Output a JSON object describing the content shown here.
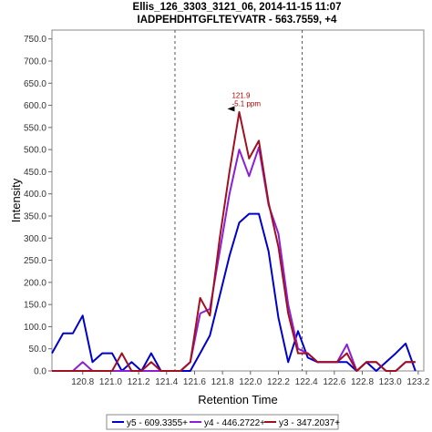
{
  "chart_data": {
    "type": "line",
    "title": "Ellis_126_3303_3121_06, 2014-11-15 11:07",
    "subtitle": "IADPEHDHTGFLTEYVATR - 563.7559, +4",
    "xlabel": "Retention Time",
    "ylabel": "Intensity",
    "xlim": [
      120.58,
      123.24
    ],
    "ylim": [
      0,
      770
    ],
    "xticks": [
      120.8,
      121.0,
      121.2,
      121.4,
      121.6,
      121.8,
      122.0,
      122.2,
      122.4,
      122.6,
      122.8,
      123.0,
      123.2
    ],
    "yticks": [
      0,
      50,
      100,
      150,
      200,
      250,
      300,
      350,
      400,
      450,
      500,
      550,
      600,
      650,
      700,
      750
    ],
    "boundaries": [
      121.46,
      122.37
    ],
    "annotation": {
      "x": 121.9,
      "y": 588,
      "line1": "121.9",
      "line2": "-5.1 ppm"
    },
    "grid": false,
    "legend_position": "bottom",
    "series": [
      {
        "name": "y5 - 609.3355+",
        "color": "#0000cc",
        "x": [
          120.58,
          120.66,
          120.73,
          120.8,
          120.87,
          120.94,
          121.01,
          121.08,
          121.15,
          121.22,
          121.29,
          121.36,
          121.43,
          121.5,
          121.57,
          121.64,
          121.71,
          121.78,
          121.85,
          121.92,
          121.99,
          122.06,
          122.13,
          122.2,
          122.27,
          122.34,
          122.41,
          122.48,
          122.55,
          122.62,
          122.69,
          122.76,
          122.83,
          122.9,
          122.97,
          123.04,
          123.11,
          123.18
        ],
        "y": [
          40,
          85,
          85,
          125,
          20,
          40,
          40,
          0,
          20,
          0,
          40,
          0,
          0,
          0,
          0,
          40,
          80,
          170,
          260,
          335,
          355,
          355,
          270,
          120,
          20,
          90,
          30,
          20,
          20,
          20,
          20,
          0,
          20,
          0,
          20,
          40,
          62,
          0
        ]
      },
      {
        "name": "y4 - 446.2722+",
        "color": "#8c1fd6",
        "x": [
          120.58,
          120.66,
          120.73,
          120.8,
          120.87,
          120.94,
          121.01,
          121.08,
          121.15,
          121.22,
          121.29,
          121.36,
          121.43,
          121.5,
          121.57,
          121.64,
          121.71,
          121.78,
          121.85,
          121.92,
          121.99,
          122.06,
          122.13,
          122.2,
          122.27,
          122.34,
          122.41,
          122.48,
          122.55,
          122.62,
          122.69,
          122.76,
          122.83,
          122.9,
          122.97,
          123.04,
          123.11,
          123.18
        ],
        "y": [
          0,
          0,
          0,
          20,
          0,
          0,
          0,
          0,
          0,
          0,
          0,
          0,
          0,
          0,
          20,
          130,
          140,
          270,
          400,
          500,
          440,
          505,
          375,
          310,
          150,
          50,
          40,
          20,
          20,
          20,
          60,
          0,
          20,
          20,
          0,
          0,
          20,
          20
        ]
      },
      {
        "name": "y3 - 347.2037+",
        "color": "#a01020",
        "x": [
          120.58,
          120.66,
          120.73,
          120.8,
          120.87,
          120.94,
          121.01,
          121.08,
          121.15,
          121.22,
          121.29,
          121.36,
          121.43,
          121.5,
          121.57,
          121.64,
          121.71,
          121.78,
          121.85,
          121.92,
          121.99,
          122.06,
          122.13,
          122.2,
          122.27,
          122.34,
          122.41,
          122.48,
          122.55,
          122.62,
          122.69,
          122.76,
          122.83,
          122.9,
          122.97,
          123.04,
          123.11,
          123.18
        ],
        "y": [
          0,
          0,
          0,
          0,
          0,
          0,
          0,
          40,
          0,
          0,
          20,
          0,
          0,
          0,
          20,
          165,
          125,
          300,
          450,
          585,
          480,
          520,
          380,
          280,
          130,
          40,
          40,
          20,
          20,
          20,
          40,
          0,
          20,
          20,
          0,
          0,
          20,
          20
        ]
      }
    ]
  }
}
